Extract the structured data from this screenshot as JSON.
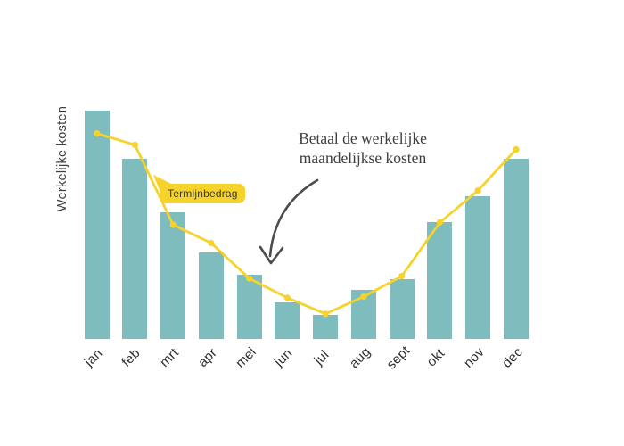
{
  "figure": {
    "background": "#ffffff",
    "annotation": {
      "text": "Betaal de werkelijke maandelijkse kosten"
    },
    "line_callout": {
      "text": "Termijnbedrag"
    },
    "colors": {
      "bar": "#7ebcbd",
      "line": "#f5d32b",
      "marker": "#f5d32b",
      "callout_bg": "#f5d32b",
      "text": "#3e3e3e",
      "arrow": "#4c4c4c"
    }
  },
  "chart_data": {
    "type": "bar",
    "categories": [
      "jan",
      "feb",
      "mrt",
      "apr",
      "mei",
      "jun",
      "jul",
      "aug",
      "sept",
      "okt",
      "nov",
      "dec"
    ],
    "series": [
      {
        "name": "Werkelijke kosten",
        "type": "bar",
        "values": [
          100,
          79,
          55.5,
          38,
          28,
          16,
          10.5,
          21.5,
          26,
          51,
          62.5,
          79
        ]
      },
      {
        "name": "Termijnbedrag",
        "type": "line",
        "values": [
          90,
          85,
          50,
          42,
          26.5,
          18,
          11,
          18.5,
          27.5,
          51,
          65,
          83
        ]
      }
    ],
    "title": "",
    "xlabel": "",
    "ylabel": "Werkelijke kosten",
    "ylim": [
      0,
      105
    ],
    "grid": false,
    "y_axis_ticks": "none",
    "legend": "none; line identified by yellow callout label"
  }
}
